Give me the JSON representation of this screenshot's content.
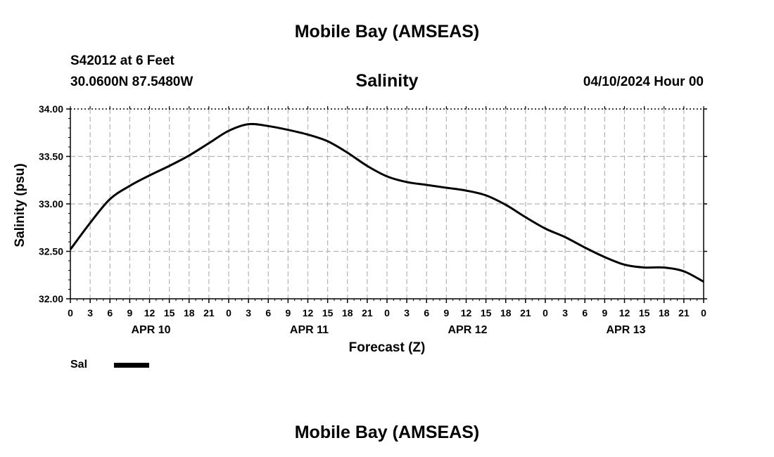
{
  "header": {
    "title": "Mobile Bay (AMSEAS)",
    "station": "S42012 at 6 Feet",
    "coords": "30.0600N  87.5480W",
    "run_time": "04/10/2024 Hour 00"
  },
  "footer": {
    "title": "Mobile Bay (AMSEAS)"
  },
  "legend": {
    "label": "Sal",
    "color": "#000000"
  },
  "chart_data": {
    "type": "line",
    "title": "Salinity",
    "xlabel": "Forecast (Z)",
    "ylabel": "Salinity (psu)",
    "ylim": [
      32.0,
      34.0
    ],
    "xlim_hours": [
      0,
      96
    ],
    "grid": true,
    "y_ticks": [
      "32.00",
      "32.50",
      "33.00",
      "33.50",
      "34.00"
    ],
    "x_tick_labels": [
      "0",
      "3",
      "6",
      "9",
      "12",
      "15",
      "18",
      "21",
      "0",
      "3",
      "6",
      "9",
      "12",
      "15",
      "18",
      "21",
      "0",
      "3",
      "6",
      "9",
      "12",
      "15",
      "18",
      "21",
      "0",
      "3",
      "6",
      "9",
      "12",
      "15",
      "18",
      "21",
      "0"
    ],
    "day_labels": [
      {
        "label": "APR 10",
        "hour": 12
      },
      {
        "label": "APR 11",
        "hour": 36
      },
      {
        "label": "APR 12",
        "hour": 60
      },
      {
        "label": "APR 13",
        "hour": 84
      }
    ],
    "series": [
      {
        "name": "Sal",
        "x": [
          0,
          3,
          6,
          9,
          12,
          15,
          18,
          21,
          24,
          27,
          30,
          33,
          36,
          39,
          42,
          45,
          48,
          51,
          54,
          57,
          60,
          63,
          66,
          69,
          72,
          75,
          78,
          81,
          84,
          87,
          90,
          93,
          96
        ],
        "values": [
          32.52,
          32.8,
          33.05,
          33.19,
          33.3,
          33.4,
          33.51,
          33.64,
          33.77,
          33.84,
          33.82,
          33.78,
          33.73,
          33.66,
          33.54,
          33.4,
          33.29,
          33.23,
          33.2,
          33.17,
          33.14,
          33.09,
          32.99,
          32.86,
          32.74,
          32.65,
          32.54,
          32.44,
          32.36,
          32.33,
          32.33,
          32.29,
          32.18
        ]
      }
    ]
  }
}
